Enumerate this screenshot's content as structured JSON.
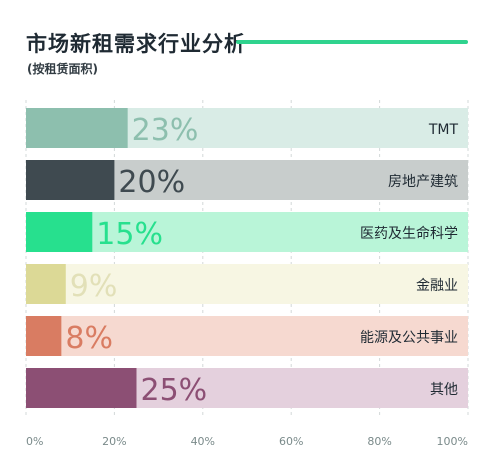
{
  "header": {
    "title": "市场新租需求行业分析",
    "subtitle": "(按租赁面积)"
  },
  "chart_data": {
    "type": "bar",
    "orientation": "horizontal",
    "title": "市场新租需求行业分析",
    "subtitle": "(按租赁面积)",
    "categories": [
      "TMT",
      "房地产建筑",
      "医药及生命科学",
      "金融业",
      "能源及公共事业",
      "其他"
    ],
    "values": [
      23,
      20,
      15,
      9,
      8,
      25
    ],
    "value_labels": [
      "23%",
      "20%",
      "15%",
      "9%",
      "8%",
      "25%"
    ],
    "colors": [
      "#8dbfae",
      "#3f4a50",
      "#27e08e",
      "#dcd996",
      "#d97c62",
      "#8c4f74"
    ],
    "track_colors": [
      "#d9ece6",
      "#c8cdcc",
      "#b9f5d8",
      "#f7f6e3",
      "#f6d9d0",
      "#e4d0dd"
    ],
    "label_colors": [
      "#8dbfae",
      "#3f4a50",
      "#27e08e",
      "#e2e0b8",
      "#d97c62",
      "#8c4f74"
    ],
    "xlim": [
      0,
      100
    ],
    "x_ticks": [
      0,
      20,
      40,
      60,
      80,
      100
    ],
    "x_tick_labels": [
      "0%",
      "20%",
      "40%",
      "60%",
      "80%",
      "100%"
    ],
    "grid": true,
    "legend": "none"
  }
}
